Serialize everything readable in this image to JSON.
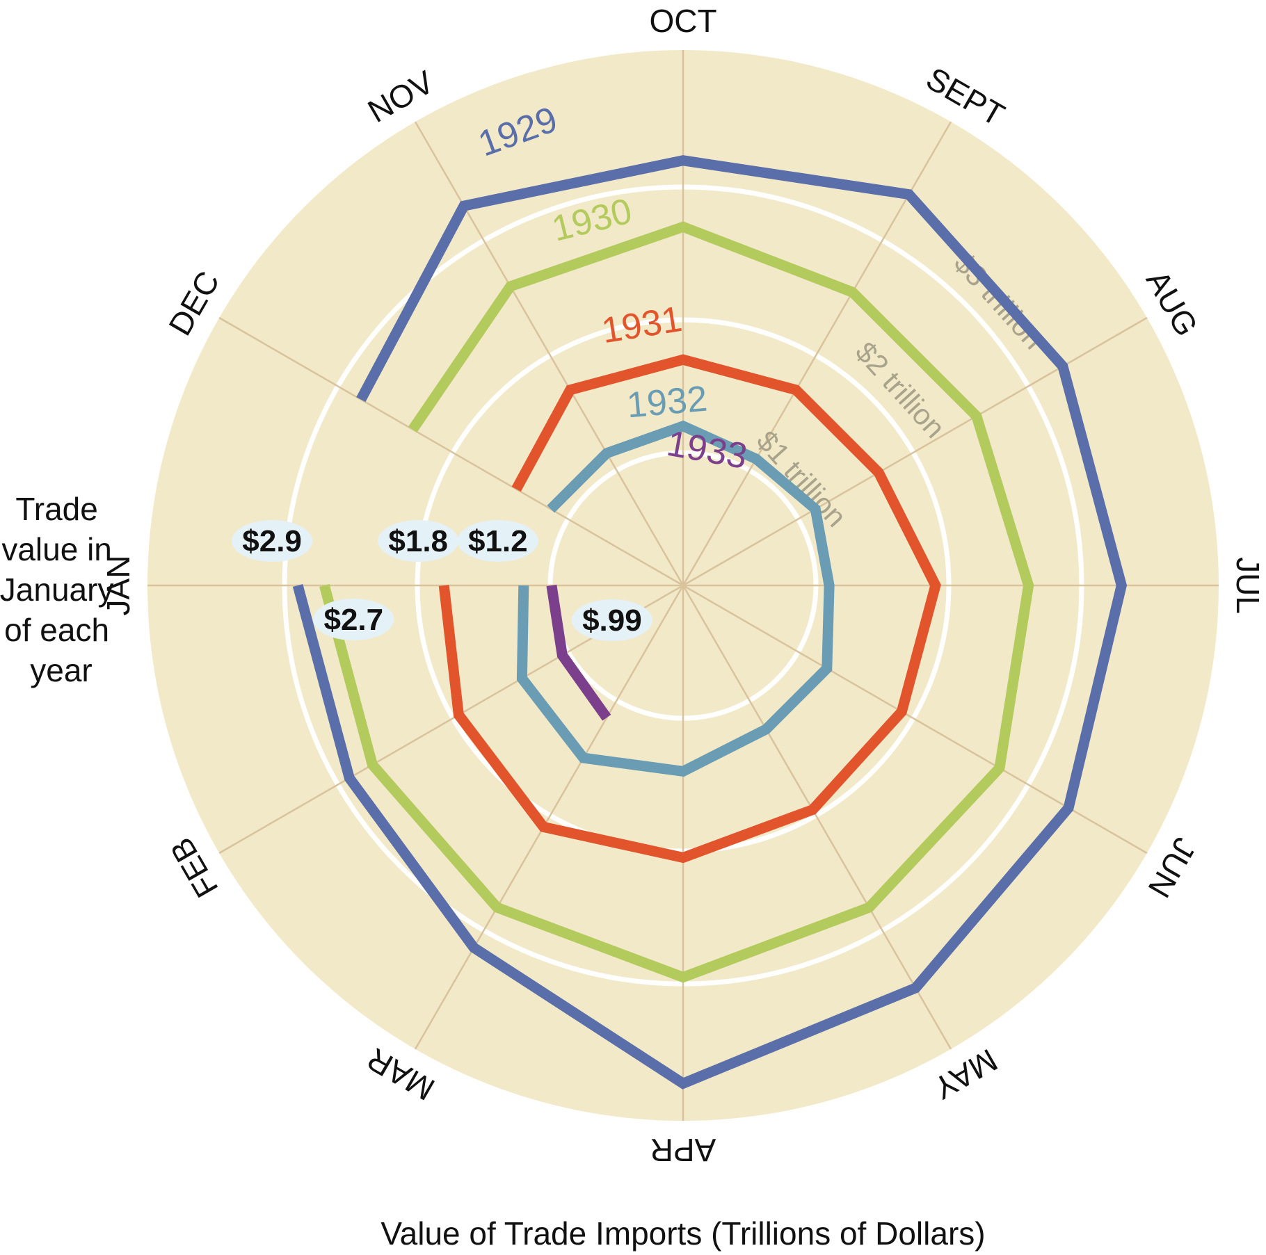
{
  "chart_data": {
    "type": "radar-spiral",
    "categories": [
      "JUL",
      "AUG",
      "SEPT",
      "OCT",
      "NOV",
      "DEC",
      "JAN",
      "FEB",
      "MAR",
      "APR",
      "MAY",
      "JUN"
    ],
    "xlabel": "Value of Trade Imports (Trillions of Dollars)",
    "rings": [
      {
        "value": 1,
        "label": "$1 trillion"
      },
      {
        "value": 2,
        "label": "$2 trillion"
      },
      {
        "value": 3,
        "label": "$3 trillion"
      }
    ],
    "series": [
      {
        "name": "1929",
        "color": "#5a6eaa",
        "values": {
          "JAN": 2.9,
          "FEB": 2.9,
          "MAR": 3.15,
          "APR": 3.75,
          "MAY": 3.5,
          "JUN": 3.35,
          "JUL": 3.3,
          "AUG": 3.3,
          "SEPT": 3.4,
          "OCT": 3.2,
          "NOV": 3.3,
          "DEC": 2.8
        }
      },
      {
        "name": "1930",
        "color": "#b3ca5c",
        "values": {
          "JAN": 2.7,
          "FEB": 2.7,
          "MAR": 2.8,
          "APR": 2.95,
          "MAY": 2.8,
          "JUN": 2.75,
          "JUL": 2.6,
          "AUG": 2.55,
          "SEPT": 2.55,
          "OCT": 2.7,
          "NOV": 2.6,
          "DEC": 2.35
        }
      },
      {
        "name": "1931",
        "color": "#e2542c",
        "values": {
          "JAN": 1.8,
          "FEB": 1.95,
          "MAR": 2.1,
          "APR": 2.05,
          "MAY": 1.95,
          "JUN": 1.9,
          "JUL": 1.9,
          "AUG": 1.7,
          "SEPT": 1.7,
          "OCT": 1.7,
          "NOV": 1.7,
          "DEC": 1.45
        }
      },
      {
        "name": "1932",
        "color": "#6a9db4",
        "values": {
          "JAN": 1.2,
          "FEB": 1.4,
          "MAR": 1.5,
          "APR": 1.4,
          "MAY": 1.25,
          "JUN": 1.25,
          "JUL": 1.1,
          "AUG": 1.15,
          "SEPT": 1.1,
          "OCT": 1.2,
          "NOV": 1.15,
          "DEC": 1.15
        }
      },
      {
        "name": "1933",
        "color": "#7b3f8c",
        "values": {
          "JAN": 0.99,
          "FEB": 1.05,
          "MAR": 1.15
        }
      }
    ],
    "january_callouts": [
      "$2.9",
      "$2.7",
      "$1.8",
      "$1.2",
      "$.99"
    ],
    "january_note": [
      "Trade",
      "value in",
      "January",
      "of each",
      "year"
    ],
    "grid": true,
    "legend": "none"
  }
}
